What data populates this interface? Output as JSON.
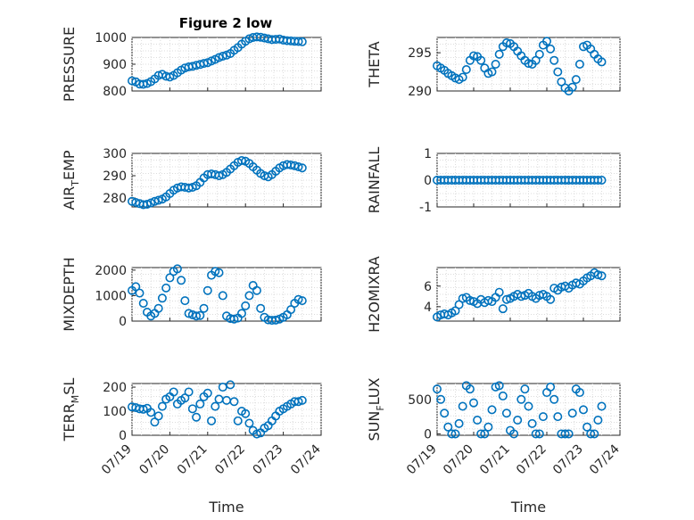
{
  "colors": {
    "marker": "#0072bd",
    "axes": "#262626",
    "grid": "#dcdcdc"
  },
  "figure": {
    "title": "Figure 2 low"
  },
  "chart_data": [
    {
      "id": "pressure",
      "type": "scatter",
      "title": "Figure 2 low",
      "ylabel": {
        "main": "PRESSURE",
        "sub": "",
        "tail": ""
      },
      "xlim": [
        0,
        5
      ],
      "ylim": [
        800,
        1000
      ],
      "yticks": [
        800,
        900,
        1000
      ],
      "xtick_labels": [],
      "xlabel": "",
      "grid": true,
      "x": [
        0.0,
        0.1,
        0.2,
        0.3,
        0.4,
        0.5,
        0.6,
        0.7,
        0.8,
        0.9,
        1.0,
        1.1,
        1.2,
        1.3,
        1.4,
        1.5,
        1.6,
        1.7,
        1.8,
        1.9,
        2.0,
        2.1,
        2.2,
        2.3,
        2.4,
        2.5,
        2.6,
        2.7,
        2.8,
        2.9,
        3.0,
        3.1,
        3.2,
        3.3,
        3.4,
        3.5,
        3.6,
        3.7,
        3.8,
        3.9,
        4.0,
        4.1,
        4.2,
        4.3,
        4.4,
        4.5
      ],
      "y": [
        838,
        834,
        826,
        825,
        828,
        835,
        845,
        858,
        862,
        855,
        852,
        858,
        868,
        878,
        886,
        890,
        892,
        896,
        899,
        903,
        906,
        912,
        918,
        925,
        930,
        934,
        940,
        952,
        962,
        975,
        986,
        995,
        1000,
        1002,
        1001,
        998,
        995,
        992,
        993,
        994,
        990,
        988,
        987,
        986,
        985,
        984
      ]
    },
    {
      "id": "theta",
      "type": "scatter",
      "ylabel": {
        "main": "THETA",
        "sub": "",
        "tail": ""
      },
      "xlim": [
        0,
        5
      ],
      "ylim": [
        290,
        297
      ],
      "yticks": [
        290,
        295
      ],
      "xtick_labels": [],
      "xlabel": "",
      "grid": true,
      "x": [
        0.0,
        0.1,
        0.2,
        0.3,
        0.4,
        0.5,
        0.6,
        0.7,
        0.8,
        0.9,
        1.0,
        1.1,
        1.2,
        1.3,
        1.4,
        1.5,
        1.6,
        1.7,
        1.8,
        1.9,
        2.0,
        2.1,
        2.2,
        2.3,
        2.4,
        2.5,
        2.6,
        2.7,
        2.8,
        2.9,
        3.0,
        3.1,
        3.2,
        3.3,
        3.4,
        3.5,
        3.6,
        3.7,
        3.8,
        3.9,
        4.0,
        4.1,
        4.2,
        4.3,
        4.4,
        4.5
      ],
      "y": [
        293.3,
        293.0,
        292.7,
        292.3,
        292.0,
        291.7,
        291.5,
        291.8,
        292.8,
        294.0,
        294.6,
        294.5,
        294.0,
        293.0,
        292.3,
        292.5,
        293.5,
        294.8,
        295.8,
        296.3,
        296.2,
        295.8,
        295.2,
        294.6,
        294.0,
        293.6,
        293.5,
        294.0,
        294.8,
        296.0,
        296.5,
        295.5,
        294.0,
        292.5,
        291.2,
        290.4,
        290.0,
        290.5,
        291.5,
        293.5,
        295.8,
        296.0,
        295.5,
        294.8,
        294.2,
        293.8
      ]
    },
    {
      "id": "air_temp",
      "type": "scatter",
      "ylabel": {
        "main": "AIR",
        "sub": "T",
        "tail": "EMP"
      },
      "xlim": [
        0,
        5
      ],
      "ylim": [
        276,
        300
      ],
      "yticks": [
        280,
        290,
        300
      ],
      "xtick_labels": [],
      "xlabel": "",
      "grid": true,
      "x": [
        0.0,
        0.1,
        0.2,
        0.3,
        0.4,
        0.5,
        0.6,
        0.7,
        0.8,
        0.9,
        1.0,
        1.1,
        1.2,
        1.3,
        1.4,
        1.5,
        1.6,
        1.7,
        1.8,
        1.9,
        2.0,
        2.1,
        2.2,
        2.3,
        2.4,
        2.5,
        2.6,
        2.7,
        2.8,
        2.9,
        3.0,
        3.1,
        3.2,
        3.3,
        3.4,
        3.5,
        3.6,
        3.7,
        3.8,
        3.9,
        4.0,
        4.1,
        4.2,
        4.3,
        4.4,
        4.5
      ],
      "y": [
        278.5,
        278.0,
        277.5,
        277.0,
        277.2,
        277.8,
        278.5,
        279.0,
        279.5,
        280.5,
        282.0,
        283.5,
        284.5,
        285.0,
        284.8,
        284.5,
        284.8,
        285.5,
        287.0,
        289.0,
        290.5,
        290.8,
        290.5,
        290.0,
        290.5,
        291.5,
        293.0,
        294.5,
        296.0,
        296.8,
        296.5,
        295.5,
        294.0,
        292.5,
        291.0,
        290.0,
        289.5,
        290.5,
        292.0,
        293.5,
        294.5,
        295.0,
        294.8,
        294.5,
        294.0,
        293.5
      ]
    },
    {
      "id": "rainfall",
      "type": "scatter",
      "ylabel": {
        "main": "RAINFALL",
        "sub": "",
        "tail": ""
      },
      "xlim": [
        0,
        5
      ],
      "ylim": [
        -1,
        1
      ],
      "yticks": [
        -1,
        0,
        1
      ],
      "xtick_labels": [],
      "xlabel": "",
      "grid": true,
      "x": [
        0.0,
        0.1,
        0.2,
        0.3,
        0.4,
        0.5,
        0.6,
        0.7,
        0.8,
        0.9,
        1.0,
        1.1,
        1.2,
        1.3,
        1.4,
        1.5,
        1.6,
        1.7,
        1.8,
        1.9,
        2.0,
        2.1,
        2.2,
        2.3,
        2.4,
        2.5,
        2.6,
        2.7,
        2.8,
        2.9,
        3.0,
        3.1,
        3.2,
        3.3,
        3.4,
        3.5,
        3.6,
        3.7,
        3.8,
        3.9,
        4.0,
        4.1,
        4.2,
        4.3,
        4.4,
        4.5
      ],
      "y": [
        0,
        0,
        0,
        0,
        0,
        0,
        0,
        0,
        0,
        0,
        0,
        0,
        0,
        0,
        0,
        0,
        0,
        0,
        0,
        0,
        0,
        0,
        0,
        0,
        0,
        0,
        0,
        0,
        0,
        0,
        0,
        0,
        0,
        0,
        0,
        0,
        0,
        0,
        0,
        0,
        0,
        0,
        0,
        0,
        0,
        0
      ]
    },
    {
      "id": "mixdepth",
      "type": "scatter",
      "ylabel": {
        "main": "MIXDEPTH",
        "sub": "",
        "tail": ""
      },
      "xlim": [
        0,
        5
      ],
      "ylim": [
        0,
        2100
      ],
      "yticks": [
        0,
        1000,
        2000
      ],
      "xtick_labels": [],
      "xlabel": "",
      "grid": true,
      "x": [
        0.0,
        0.1,
        0.2,
        0.3,
        0.4,
        0.5,
        0.6,
        0.7,
        0.8,
        0.9,
        1.0,
        1.1,
        1.2,
        1.3,
        1.4,
        1.5,
        1.6,
        1.7,
        1.8,
        1.9,
        2.0,
        2.1,
        2.2,
        2.3,
        2.4,
        2.5,
        2.6,
        2.7,
        2.8,
        2.9,
        3.0,
        3.1,
        3.2,
        3.3,
        3.4,
        3.5,
        3.6,
        3.7,
        3.8,
        3.9,
        4.0,
        4.1,
        4.2,
        4.3,
        4.4,
        4.5
      ],
      "y": [
        1200,
        1350,
        1100,
        700,
        350,
        200,
        300,
        500,
        900,
        1300,
        1700,
        1950,
        2050,
        1600,
        800,
        300,
        250,
        200,
        220,
        500,
        1200,
        1800,
        1950,
        1900,
        1000,
        200,
        100,
        80,
        120,
        300,
        600,
        1000,
        1400,
        1200,
        500,
        150,
        50,
        30,
        40,
        80,
        150,
        250,
        450,
        700,
        850,
        800
      ]
    },
    {
      "id": "h2omixra",
      "type": "scatter",
      "ylabel": {
        "main": "H2OMIXRA",
        "sub": "",
        "tail": ""
      },
      "xlim": [
        0,
        5
      ],
      "ylim": [
        2.6,
        7.8
      ],
      "yticks": [
        4,
        6
      ],
      "xtick_labels": [],
      "xlabel": "",
      "grid": true,
      "x": [
        0.0,
        0.1,
        0.2,
        0.3,
        0.4,
        0.5,
        0.6,
        0.7,
        0.8,
        0.9,
        1.0,
        1.1,
        1.2,
        1.3,
        1.4,
        1.5,
        1.6,
        1.7,
        1.8,
        1.9,
        2.0,
        2.1,
        2.2,
        2.3,
        2.4,
        2.5,
        2.6,
        2.7,
        2.8,
        2.9,
        3.0,
        3.1,
        3.2,
        3.3,
        3.4,
        3.5,
        3.6,
        3.7,
        3.8,
        3.9,
        4.0,
        4.1,
        4.2,
        4.3,
        4.4,
        4.5
      ],
      "y": [
        3.0,
        3.2,
        3.3,
        3.2,
        3.4,
        3.6,
        4.2,
        4.8,
        4.9,
        4.6,
        4.5,
        4.3,
        4.7,
        4.4,
        4.6,
        4.5,
        4.9,
        5.4,
        3.8,
        4.7,
        4.8,
        5.0,
        5.2,
        5.0,
        5.1,
        5.3,
        5.0,
        4.8,
        5.1,
        5.2,
        5.0,
        4.7,
        5.8,
        5.6,
        5.9,
        6.0,
        5.8,
        6.1,
        6.3,
        6.2,
        6.5,
        6.8,
        7.0,
        7.3,
        7.1,
        7.0
      ]
    },
    {
      "id": "terr_msl",
      "type": "scatter",
      "ylabel": {
        "main": "TERR",
        "sub": "M",
        "tail": "SL"
      },
      "xlim": [
        0,
        5
      ],
      "ylim": [
        0,
        215
      ],
      "yticks": [
        0,
        100,
        200
      ],
      "xtick_labels": [
        "07/19",
        "07/20",
        "07/21",
        "07/22",
        "07/23",
        "07/24"
      ],
      "xlabel": "Time",
      "grid": true,
      "x": [
        0.0,
        0.1,
        0.2,
        0.3,
        0.4,
        0.5,
        0.6,
        0.7,
        0.8,
        0.9,
        1.0,
        1.1,
        1.2,
        1.3,
        1.4,
        1.5,
        1.6,
        1.7,
        1.8,
        1.9,
        2.0,
        2.1,
        2.2,
        2.3,
        2.4,
        2.5,
        2.6,
        2.7,
        2.8,
        2.9,
        3.0,
        3.1,
        3.2,
        3.3,
        3.4,
        3.5,
        3.6,
        3.7,
        3.8,
        3.9,
        4.0,
        4.1,
        4.2,
        4.3,
        4.4,
        4.5
      ],
      "y": [
        118,
        115,
        110,
        108,
        112,
        95,
        55,
        80,
        120,
        150,
        160,
        180,
        130,
        145,
        155,
        180,
        110,
        75,
        130,
        160,
        175,
        60,
        120,
        150,
        200,
        145,
        210,
        140,
        60,
        100,
        90,
        50,
        20,
        5,
        10,
        30,
        40,
        60,
        80,
        100,
        110,
        120,
        130,
        140,
        140,
        145
      ]
    },
    {
      "id": "sun_flux",
      "type": "scatter",
      "ylabel": {
        "main": "SUN",
        "sub": "F",
        "tail": "LUX"
      },
      "xlim": [
        0,
        5
      ],
      "ylim": [
        -20,
        730
      ],
      "yticks": [
        0,
        500
      ],
      "xtick_labels": [
        "07/19",
        "07/20",
        "07/21",
        "07/22",
        "07/23",
        "07/24"
      ],
      "xlabel": "Time",
      "grid": true,
      "x": [
        0.0,
        0.1,
        0.2,
        0.3,
        0.4,
        0.5,
        0.6,
        0.7,
        0.8,
        0.9,
        1.0,
        1.1,
        1.2,
        1.3,
        1.4,
        1.5,
        1.6,
        1.7,
        1.8,
        1.9,
        2.0,
        2.1,
        2.2,
        2.3,
        2.4,
        2.5,
        2.6,
        2.7,
        2.8,
        2.9,
        3.0,
        3.1,
        3.2,
        3.3,
        3.4,
        3.5,
        3.6,
        3.7,
        3.8,
        3.9,
        4.0,
        4.1,
        4.2,
        4.3,
        4.4,
        4.5
      ],
      "y": [
        650,
        500,
        300,
        100,
        0,
        0,
        150,
        400,
        700,
        650,
        450,
        200,
        0,
        0,
        100,
        350,
        680,
        700,
        550,
        300,
        50,
        0,
        200,
        500,
        650,
        400,
        150,
        0,
        0,
        250,
        600,
        680,
        500,
        250,
        0,
        0,
        0,
        300,
        650,
        600,
        350,
        100,
        0,
        0,
        200,
        400
      ]
    }
  ]
}
